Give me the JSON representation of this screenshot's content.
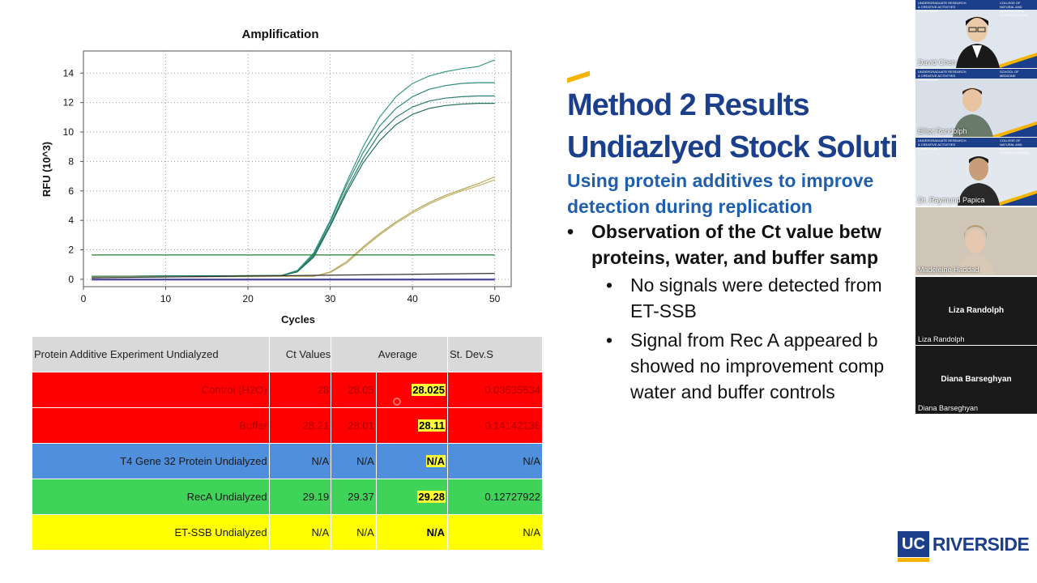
{
  "chart_data": {
    "type": "line",
    "title": "Amplification",
    "xlabel": "Cycles",
    "ylabel": "RFU (10^3)",
    "xlim": [
      0,
      52
    ],
    "ylim": [
      -0.5,
      15.5
    ],
    "xticks": [
      0,
      10,
      20,
      30,
      40,
      50
    ],
    "yticks": [
      0,
      2,
      4,
      6,
      8,
      10,
      12,
      14
    ],
    "grid": true,
    "series": [
      {
        "color": "#3a9a86",
        "x": [
          1,
          24,
          26,
          28,
          30,
          32,
          34,
          36,
          38,
          40,
          42,
          44,
          46,
          48,
          50
        ],
        "y": [
          0.2,
          0.25,
          0.6,
          1.8,
          4.0,
          6.6,
          9.0,
          11.0,
          12.4,
          13.3,
          13.8,
          14.1,
          14.3,
          14.45,
          14.9
        ]
      },
      {
        "color": "#2f8a7a",
        "x": [
          1,
          24,
          26,
          28,
          30,
          32,
          34,
          36,
          38,
          40,
          42,
          44,
          46,
          48,
          50
        ],
        "y": [
          0.2,
          0.25,
          0.55,
          1.7,
          3.9,
          6.4,
          8.6,
          10.4,
          11.6,
          12.4,
          12.9,
          13.15,
          13.3,
          13.35,
          13.35
        ]
      },
      {
        "color": "#2a7f70",
        "x": [
          1,
          24,
          26,
          28,
          30,
          32,
          34,
          36,
          38,
          40,
          42,
          44,
          46,
          48,
          50
        ],
        "y": [
          0.2,
          0.25,
          0.5,
          1.6,
          3.7,
          6.1,
          8.2,
          9.9,
          11.0,
          11.7,
          12.1,
          12.3,
          12.4,
          12.45,
          12.45
        ]
      },
      {
        "color": "#23705f",
        "x": [
          1,
          24,
          26,
          28,
          30,
          32,
          34,
          36,
          38,
          40,
          42,
          44,
          46,
          48,
          50
        ],
        "y": [
          0.2,
          0.25,
          0.5,
          1.5,
          3.6,
          5.9,
          7.9,
          9.4,
          10.5,
          11.2,
          11.6,
          11.8,
          11.9,
          11.95,
          11.95
        ]
      },
      {
        "color": "#b5a85a",
        "x": [
          1,
          28,
          30,
          32,
          34,
          36,
          38,
          40,
          42,
          44,
          46,
          48,
          50
        ],
        "y": [
          0.15,
          0.2,
          0.5,
          1.2,
          2.2,
          3.1,
          3.9,
          4.6,
          5.2,
          5.7,
          6.1,
          6.5,
          6.95
        ]
      },
      {
        "color": "#c2b36a",
        "x": [
          1,
          28,
          30,
          32,
          34,
          36,
          38,
          40,
          42,
          44,
          46,
          48,
          50
        ],
        "y": [
          0.15,
          0.2,
          0.45,
          1.1,
          2.1,
          3.0,
          3.8,
          4.5,
          5.1,
          5.6,
          6.0,
          6.35,
          6.75
        ]
      },
      {
        "color": "#1f7f2f",
        "x": [
          1,
          50
        ],
        "y": [
          1.65,
          1.65
        ]
      },
      {
        "color": "#1a2a80",
        "x": [
          1,
          50
        ],
        "y": [
          0.0,
          0.0
        ]
      },
      {
        "color": "#333333",
        "x": [
          1,
          50
        ],
        "y": [
          0.1,
          0.4
        ]
      },
      {
        "color": "#6a4aa0",
        "x": [
          1,
          50
        ],
        "y": [
          -0.05,
          -0.05
        ]
      }
    ]
  },
  "table": {
    "headers": [
      "Protein Additive Experiment Undialyzed",
      "Ct Values",
      "",
      "Average",
      "St. Dev.S"
    ],
    "rows": [
      {
        "label": "Control (H2O)",
        "ct1": "28",
        "ct2": "28.05",
        "avg": "28.025",
        "sd": "0.03535534"
      },
      {
        "label": "Buffer",
        "ct1": "28.21",
        "ct2": "28.01",
        "avg": "28.11",
        "sd": "0.14142136"
      },
      {
        "label": "T4 Gene 32 Protein Undialyzed",
        "ct1": "N/A",
        "ct2": "N/A",
        "avg": "N/A",
        "sd": "N/A"
      },
      {
        "label": "RecA Undialyzed",
        "ct1": "29.19",
        "ct2": "29.37",
        "avg": "29.28",
        "sd": "0.12727922"
      },
      {
        "label": "ET-SSB Undialyzed",
        "ct1": "N/A",
        "ct2": "N/A",
        "avg": "N/A",
        "sd": "N/A"
      }
    ]
  },
  "slide": {
    "title_line1": "Method 2 Results",
    "title_line2": "Undiazlyed Stock Soluti",
    "subtitle_line1": "Using protein additives to improve",
    "subtitle_line2": "detection during replication",
    "bullet1_line1": "Observation of the Ct value betw",
    "bullet1_line2": "proteins, water, and buffer samp",
    "sub1_line1": "No signals were detected from",
    "sub1_line2": "ET-SSB",
    "sub2_line1": "Signal from Rec A appeared b",
    "sub2_line2": "showed no improvement comp",
    "sub2_line3": "water and buffer controls",
    "bullet_glyph": "•"
  },
  "logo": {
    "uc": "UC",
    "name": "RIVERSIDE"
  },
  "participants": [
    {
      "name": "David Chen",
      "video": true
    },
    {
      "name": "Elliot Randolph",
      "video": true
    },
    {
      "name": "Dr. Raymund Papica",
      "video": true
    },
    {
      "name": "Madeleine Haddad",
      "video": true
    },
    {
      "name": "Liza Randolph",
      "video": false
    },
    {
      "name": "Diana Barseghyan",
      "video": false
    }
  ],
  "banner": {
    "left": "UNDERGRADUATE RESEARCH & CREATIVE ACTIVITIES SYMPOSIUM",
    "right_1": "COLLEGE OF NATURAL AND AGRICULTURAL SCIENCES (CNAS)",
    "right_2": "SCHOOL OF MEDICINE",
    "right_3": "COLLEGE OF NATURAL AND AGRICULTURAL SCIENCES (CNAS)"
  }
}
